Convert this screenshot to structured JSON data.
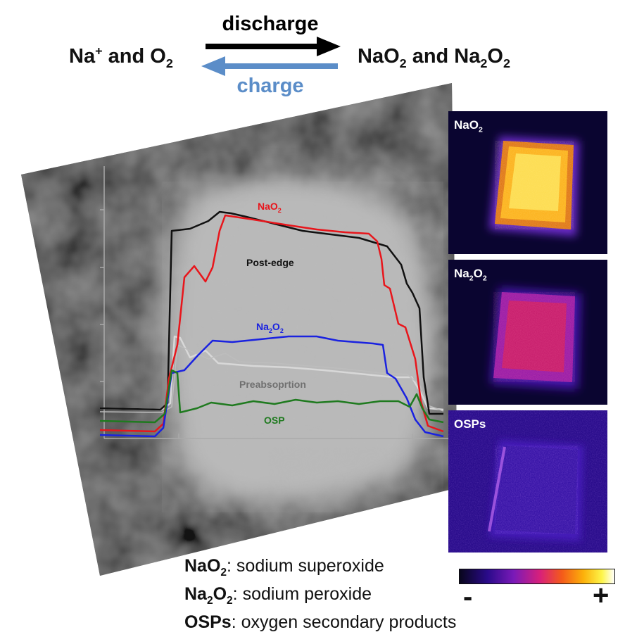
{
  "reaction": {
    "left": {
      "part1": "Na",
      "sup": "+",
      "part2": " and O",
      "sub": "2"
    },
    "right": {
      "a": "NaO",
      "a_sub": "2",
      "mid": " and Na",
      "b_sub1": "2",
      "o": "O",
      "b_sub2": "2"
    },
    "discharge": "discharge",
    "charge": "charge",
    "colors": {
      "discharge": "#000000",
      "charge": "#5b8dc8"
    }
  },
  "traces": {
    "naO2": {
      "t1": "NaO",
      "t2": "2",
      "color": "#e8151b"
    },
    "postedge": {
      "t1": "Post-edge",
      "color": "#111111"
    },
    "na2o2": {
      "t1": "Na",
      "t2": "2",
      "t3": "O",
      "t4": "2",
      "color": "#1a22e0"
    },
    "preabs": {
      "t1": "Preabsoprtion",
      "color": "#d8d8d8"
    },
    "osp": {
      "t1": "OSP",
      "color": "#1f7a1f"
    }
  },
  "panels": [
    {
      "t1": "NaO",
      "t2": "2"
    },
    {
      "t1": "Na",
      "t2": "2",
      "t3": "O",
      "t4": "2"
    },
    {
      "t1": "OSPs"
    }
  ],
  "legend": [
    {
      "term": "NaO",
      "sub": "2",
      "rest": "",
      "desc": ": sodium superoxide"
    },
    {
      "term": "Na",
      "sub": "2",
      "rest": "O",
      "sub2": "2",
      "desc": ": sodium peroxide"
    },
    {
      "term": "OSPs",
      "desc": ": oxygen secondary products"
    }
  ],
  "colorbar": {
    "minus": "-",
    "plus": "+"
  }
}
